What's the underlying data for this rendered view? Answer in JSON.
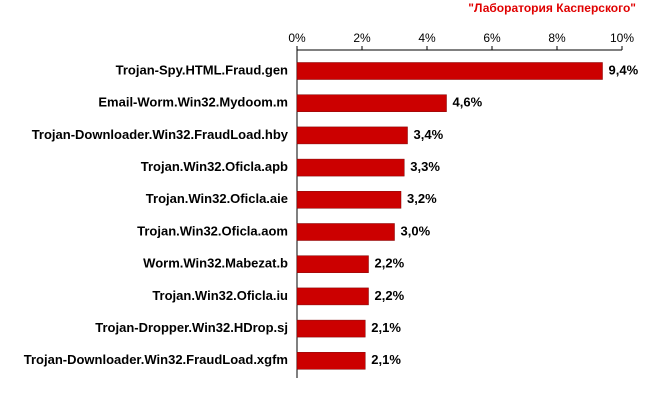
{
  "chart_data": {
    "type": "bar",
    "orientation": "horizontal",
    "title": "\"Лаборатория Касперского\"",
    "categories": [
      "Trojan-Spy.HTML.Fraud.gen",
      "Email-Worm.Win32.Mydoom.m",
      "Trojan-Downloader.Win32.FraudLoad.hby",
      "Trojan.Win32.Oficla.apb",
      "Trojan.Win32.Oficla.aie",
      "Trojan.Win32.Oficla.aom",
      "Worm.Win32.Mabezat.b",
      "Trojan.Win32.Oficla.iu",
      "Trojan-Dropper.Win32.HDrop.sj",
      "Trojan-Downloader.Win32.FraudLoad.xgfm"
    ],
    "values": [
      9.4,
      4.6,
      3.4,
      3.3,
      3.2,
      3.0,
      2.2,
      2.2,
      2.1,
      2.1
    ],
    "value_labels": [
      "9,4%",
      "4,6%",
      "3,4%",
      "3,3%",
      "3,2%",
      "3,0%",
      "2,2%",
      "2,2%",
      "2,1%",
      "2,1%"
    ],
    "color": "#cc0000",
    "xlim": [
      0,
      10
    ],
    "xticks": [
      {
        "value": 0,
        "label": "0%"
      },
      {
        "value": 2,
        "label": "2%"
      },
      {
        "value": 4,
        "label": "4%"
      },
      {
        "value": 6,
        "label": "6%"
      },
      {
        "value": 8,
        "label": "8%"
      },
      {
        "value": 10,
        "label": "10%"
      }
    ],
    "grid": false
  }
}
